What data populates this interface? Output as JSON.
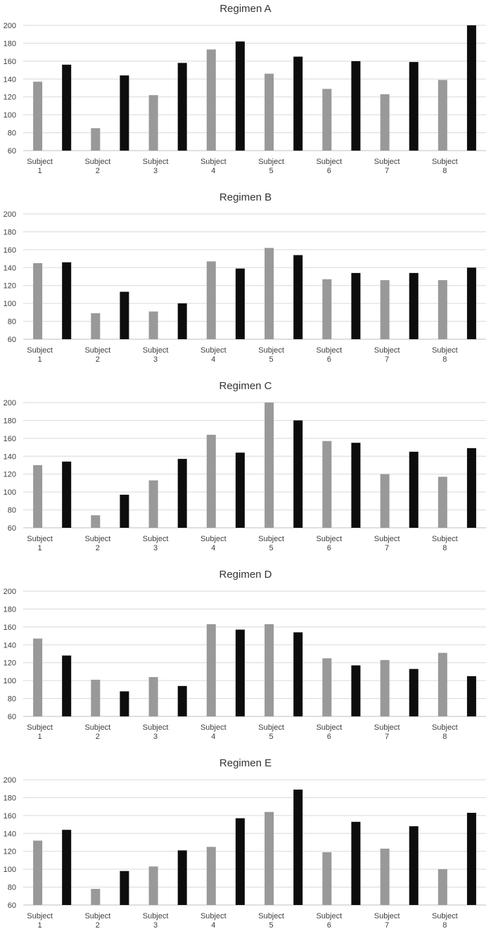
{
  "colors": {
    "gray": "#999999",
    "black": "#0d0d0d",
    "grid": "#d9d9d9"
  },
  "chart_data": [
    {
      "type": "bar",
      "title": "Regimen A",
      "categories": [
        "Subject\n1",
        "Subject\n2",
        "Subject\n3",
        "Subject\n4",
        "Subject\n5",
        "Subject\n6",
        "Subject\n7",
        "Subject\n8"
      ],
      "series": [
        {
          "values": [
            137,
            85,
            122,
            173,
            146,
            129,
            123,
            139
          ]
        },
        {
          "values": [
            156,
            144,
            158,
            182,
            165,
            160,
            159,
            200
          ]
        }
      ],
      "ylim": [
        60,
        200
      ],
      "yticks": [
        60,
        80,
        100,
        120,
        140,
        160,
        180,
        200
      ],
      "grid": true
    },
    {
      "type": "bar",
      "title": "Regimen B",
      "categories": [
        "Subject\n1",
        "Subject\n2",
        "Subject\n3",
        "Subject\n4",
        "Subject\n5",
        "Subject\n6",
        "Subject\n7",
        "Subject\n8"
      ],
      "series": [
        {
          "values": [
            145,
            89,
            91,
            147,
            162,
            127,
            126,
            126
          ]
        },
        {
          "values": [
            146,
            113,
            100,
            139,
            154,
            134,
            134,
            140
          ]
        }
      ],
      "ylim": [
        60,
        200
      ],
      "yticks": [
        60,
        80,
        100,
        120,
        140,
        160,
        180,
        200
      ],
      "grid": true
    },
    {
      "type": "bar",
      "title": "Regimen C",
      "categories": [
        "Subject\n1",
        "Subject\n2",
        "Subject\n3",
        "Subject\n4",
        "Subject\n5",
        "Subject\n6",
        "Subject\n7",
        "Subject\n8"
      ],
      "series": [
        {
          "values": [
            130,
            74,
            113,
            164,
            200,
            157,
            120,
            117
          ]
        },
        {
          "values": [
            134,
            97,
            137,
            144,
            180,
            155,
            145,
            149
          ]
        }
      ],
      "ylim": [
        60,
        200
      ],
      "yticks": [
        60,
        80,
        100,
        120,
        140,
        160,
        180,
        200
      ],
      "grid": true
    },
    {
      "type": "bar",
      "title": "Regimen D",
      "categories": [
        "Subject\n1",
        "Subject\n2",
        "Subject\n3",
        "Subject\n4",
        "Subject\n5",
        "Subject\n6",
        "Subject\n7",
        "Subject\n8"
      ],
      "series": [
        {
          "values": [
            147,
            101,
            104,
            163,
            163,
            125,
            123,
            131
          ]
        },
        {
          "values": [
            128,
            88,
            94,
            157,
            154,
            117,
            113,
            105
          ]
        }
      ],
      "ylim": [
        60,
        200
      ],
      "yticks": [
        60,
        80,
        100,
        120,
        140,
        160,
        180,
        200
      ],
      "grid": true
    },
    {
      "type": "bar",
      "title": "Regimen E",
      "categories": [
        "Subject\n1",
        "Subject\n2",
        "Subject\n3",
        "Subject\n4",
        "Subject\n5",
        "Subject\n6",
        "Subject\n7",
        "Subject\n8"
      ],
      "series": [
        {
          "values": [
            132,
            78,
            103,
            125,
            164,
            119,
            123,
            100
          ]
        },
        {
          "values": [
            144,
            98,
            121,
            157,
            189,
            153,
            148,
            163
          ]
        }
      ],
      "ylim": [
        60,
        200
      ],
      "yticks": [
        60,
        80,
        100,
        120,
        140,
        160,
        180,
        200
      ],
      "grid": true
    }
  ]
}
